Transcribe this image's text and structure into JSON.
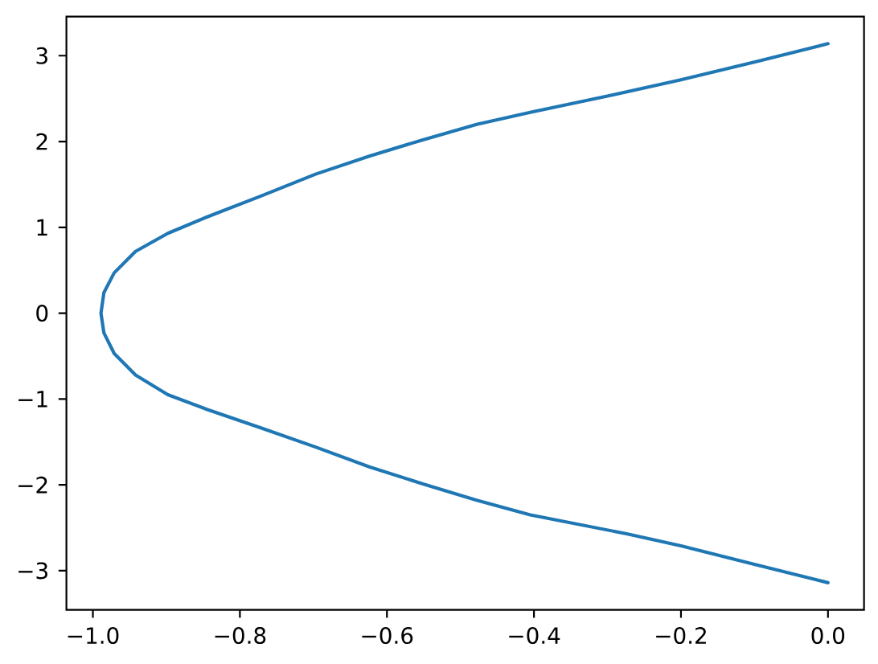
{
  "chart_data": {
    "type": "line",
    "color": "#1f77b4",
    "line_style": "solid",
    "x": [
      0.0,
      -0.098,
      -0.2,
      -0.274,
      -0.405,
      -0.478,
      -0.551,
      -0.624,
      -0.697,
      -0.77,
      -0.845,
      -0.898,
      -0.942,
      -0.971,
      -0.985,
      -0.989,
      -0.985,
      -0.971,
      -0.942,
      -0.898,
      -0.845,
      -0.77,
      -0.697,
      -0.624,
      -0.551,
      -0.478,
      -0.405,
      -0.3,
      -0.2,
      -0.098,
      0.0
    ],
    "values": [
      -3.14,
      -2.93,
      -2.71,
      -2.57,
      -2.35,
      -2.18,
      -1.99,
      -1.79,
      -1.56,
      -1.34,
      -1.12,
      -0.95,
      -0.72,
      -0.47,
      -0.23,
      0.0,
      0.24,
      0.47,
      0.72,
      0.93,
      1.12,
      1.37,
      1.62,
      1.83,
      2.02,
      2.2,
      2.34,
      2.53,
      2.72,
      2.93,
      3.14
    ],
    "xlim": [
      -1.036,
      0.049
    ],
    "ylim": [
      -3.456,
      3.456
    ],
    "xticks": [
      {
        "value": -1.0,
        "label": "−1.0"
      },
      {
        "value": -0.8,
        "label": "−0.8"
      },
      {
        "value": -0.6,
        "label": "−0.6"
      },
      {
        "value": -0.4,
        "label": "−0.4"
      },
      {
        "value": -0.2,
        "label": "−0.2"
      },
      {
        "value": 0.0,
        "label": "0.0"
      }
    ],
    "yticks": [
      {
        "value": -3,
        "label": "−3"
      },
      {
        "value": -2,
        "label": "−2"
      },
      {
        "value": -1,
        "label": "−1"
      },
      0,
      1,
      2,
      3
    ]
  }
}
